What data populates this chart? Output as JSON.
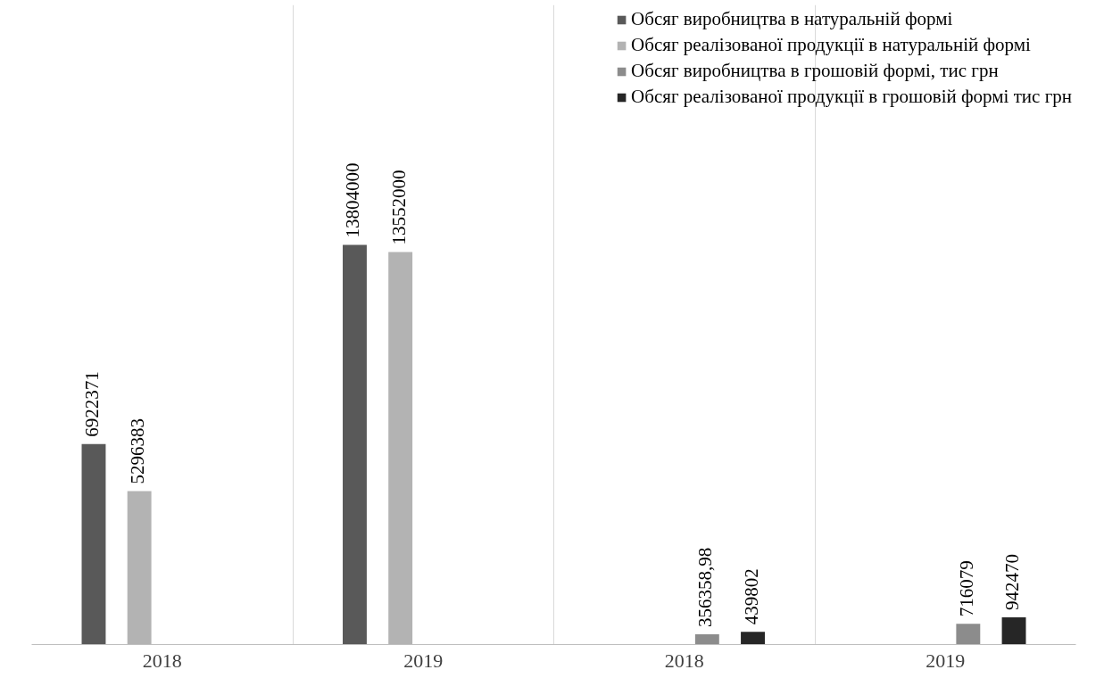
{
  "chart_data": {
    "type": "bar",
    "categories": [
      "2018",
      "2019",
      "2018",
      "2019"
    ],
    "legend": "top",
    "grid": "x",
    "series": [
      {
        "name": "Обсяг виробництва в натуральній формі",
        "color": "#595959",
        "values": [
          6922371,
          13804000,
          null,
          null
        ],
        "value_labels": [
          "6922371",
          "13804000",
          null,
          null
        ]
      },
      {
        "name": "Обсяг реалізованої продукції в натуральній формі",
        "color": "#b3b3b3",
        "values": [
          5296383,
          13552000,
          null,
          null
        ],
        "value_labels": [
          "5296383",
          "13552000",
          null,
          null
        ]
      },
      {
        "name": "Обсяг виробництва в грошовій формі, тис грн",
        "color": "#8c8c8c",
        "values": [
          null,
          null,
          356358.98,
          716079
        ],
        "value_labels": [
          null,
          null,
          "356358,98",
          "716079"
        ]
      },
      {
        "name": "Обсяг реалізованої продукції в грошовій формі тис грн",
        "color": "#262626",
        "values": [
          null,
          null,
          439802,
          942470
        ],
        "value_labels": [
          null,
          null,
          "439802",
          "942470"
        ]
      }
    ]
  }
}
